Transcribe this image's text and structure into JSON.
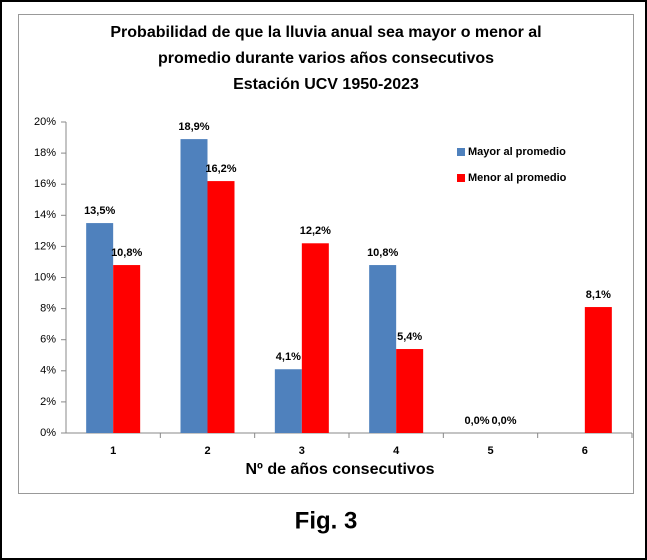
{
  "chart_data": {
    "type": "bar",
    "title": [
      "Probabilidad de que la lluvia anual sea mayor o menor al",
      "promedio durante varios años consecutivos",
      "Estación UCV 1950-2023"
    ],
    "x_label": "Nº de años consecutivos",
    "categories": [
      "1",
      "2",
      "3",
      "4",
      "5",
      "6"
    ],
    "series": [
      {
        "name": "Mayor al promedio",
        "color": "#4f81bd",
        "values": [
          13.5,
          18.9,
          4.1,
          10.8,
          0,
          0
        ],
        "value_labels": [
          "13,5%",
          "18,9%",
          "4,1%",
          "10,8%",
          "0,0%",
          null
        ]
      },
      {
        "name": "Menor al promedio",
        "color": "#ff0000",
        "values": [
          10.8,
          16.2,
          12.2,
          5.4,
          0,
          8.1
        ],
        "value_labels": [
          "10,8%",
          "16,2%",
          "12,2%",
          "5,4%",
          "0,0%",
          "8,1%"
        ]
      }
    ],
    "ylim": [
      0,
      20
    ],
    "yticks": [
      {
        "value": 0,
        "label": "0%"
      },
      {
        "value": 2,
        "label": "2%"
      },
      {
        "value": 4,
        "label": "4%"
      },
      {
        "value": 6,
        "label": "6%"
      },
      {
        "value": 8,
        "label": "8%"
      },
      {
        "value": 10,
        "label": "10%"
      },
      {
        "value": 12,
        "label": "12%"
      },
      {
        "value": 14,
        "label": "14%"
      },
      {
        "value": 16,
        "label": "16%"
      },
      {
        "value": 18,
        "label": "18%"
      },
      {
        "value": 20,
        "label": "20%"
      }
    ],
    "grid": false,
    "legend": "top-right"
  },
  "caption": "Fig. 3"
}
